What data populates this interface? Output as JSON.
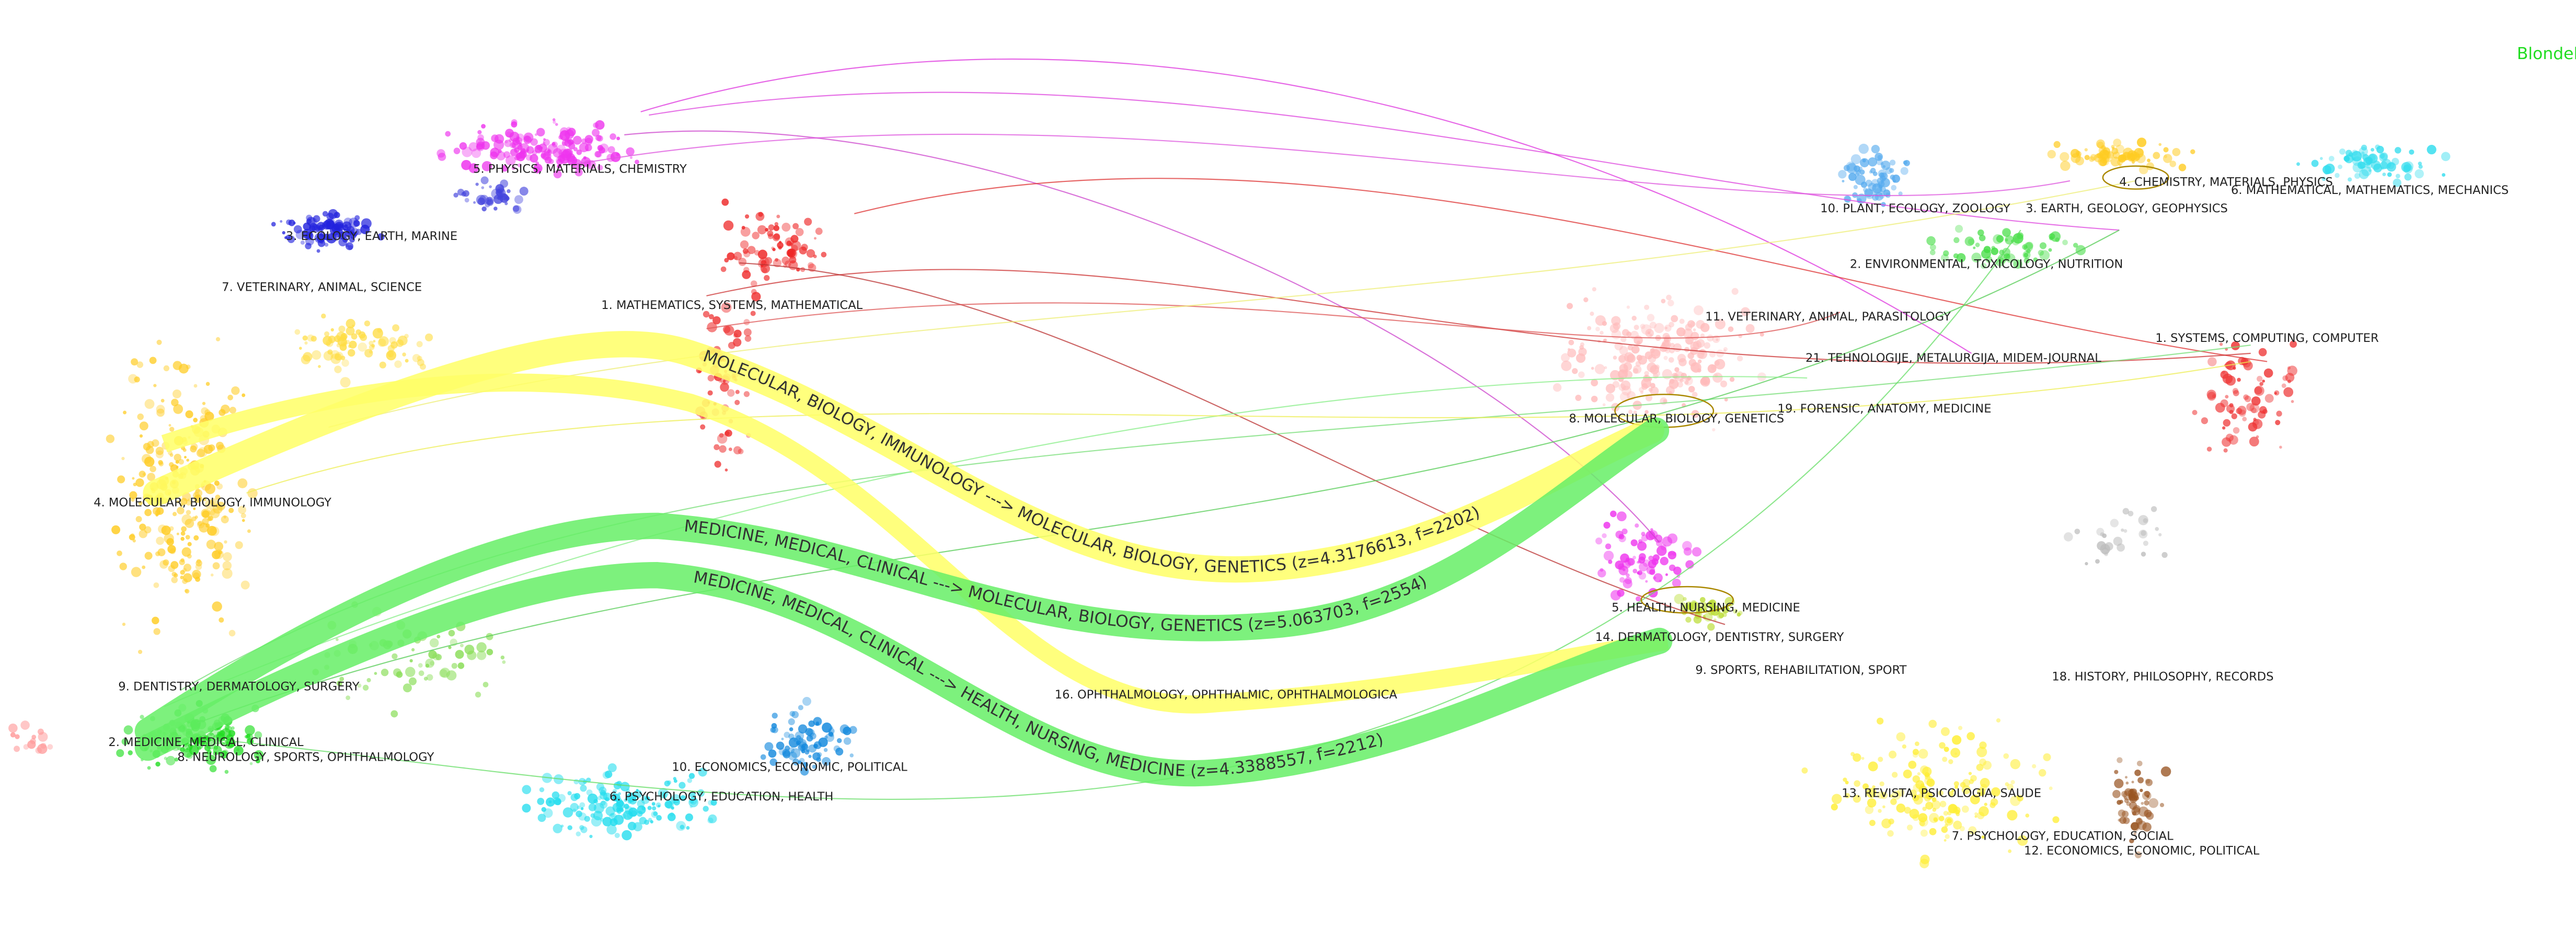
{
  "algorithm": "Blondel",
  "left_map": {
    "labels": [
      "5. PHYSICS, MATERIALS, CHEMISTRY",
      "3. ECOLOGY, EARTH, MARINE",
      "7. VETERINARY, ANIMAL, SCIENCE",
      "1. MATHEMATICS, SYSTEMS, MATHEMATICAL",
      "4. MOLECULAR, BIOLOGY, IMMUNOLOGY",
      "9. DENTISTRY, DERMATOLOGY, SURGERY",
      "2. MEDICINE, MEDICAL, CLINICAL",
      "8. NEUROLOGY, SPORTS, OPHTHALMOLOGY",
      "10. ECONOMICS, ECONOMIC, POLITICAL",
      "6. PSYCHOLOGY, EDUCATION, HEALTH"
    ]
  },
  "right_map": {
    "labels": [
      "10. PLANT, ECOLOGY, ZOOLOGY",
      "4. CHEMISTRY, MATERIALS, PHYSICS",
      "3. EARTH, GEOLOGY, GEOPHYSICS",
      "6. MATHEMATICAL, MATHEMATICS, MECHANICS",
      "2. ENVIRONMENTAL, TOXICOLOGY, NUTRITION",
      "11. VETERINARY, ANIMAL, PARASITOLOGY",
      "1. SYSTEMS, COMPUTING, COMPUTER",
      "21. TEHNOLOGIJE, METALURGIJA, MIDEM-JOURNAL",
      "19. FORENSIC, ANATOMY, MEDICINE",
      "8. MOLECULAR, BIOLOGY, GENETICS",
      "5. HEALTH, NURSING, MEDICINE",
      "14. DERMATOLOGY, DENTISTRY, SURGERY",
      "9. SPORTS, REHABILITATION, SPORT",
      "18. HISTORY, PHILOSOPHY, RECORDS",
      "16. OPHTHALMOLOGY, OPHTHALMIC, OPHTHALMOLOGICA",
      "13. REVISTA, PSICOLOGIA, SAUDE",
      "7. PSYCHOLOGY, EDUCATION, SOCIAL",
      "12. ECONOMICS, ECONOMIC, POLITICAL"
    ]
  },
  "flows": [
    {
      "label": "MOLECULAR, BIOLOGY, IMMUNOLOGY ---> MOLECULAR, BIOLOGY, GENETICS (z=4.3176613, f=2202)",
      "color": "#ffff66"
    },
    {
      "label": "MEDICINE, MEDICAL, CLINICAL ---> MOLECULAR, BIOLOGY, GENETICS (z=5.063703, f=2554)",
      "color": "#66ee66"
    },
    {
      "label": "MEDICINE, MEDICAL, CLINICAL ---> HEALTH, NURSING, MEDICINE (z=4.3388557, f=2212)",
      "color": "#66ee66"
    }
  ]
}
